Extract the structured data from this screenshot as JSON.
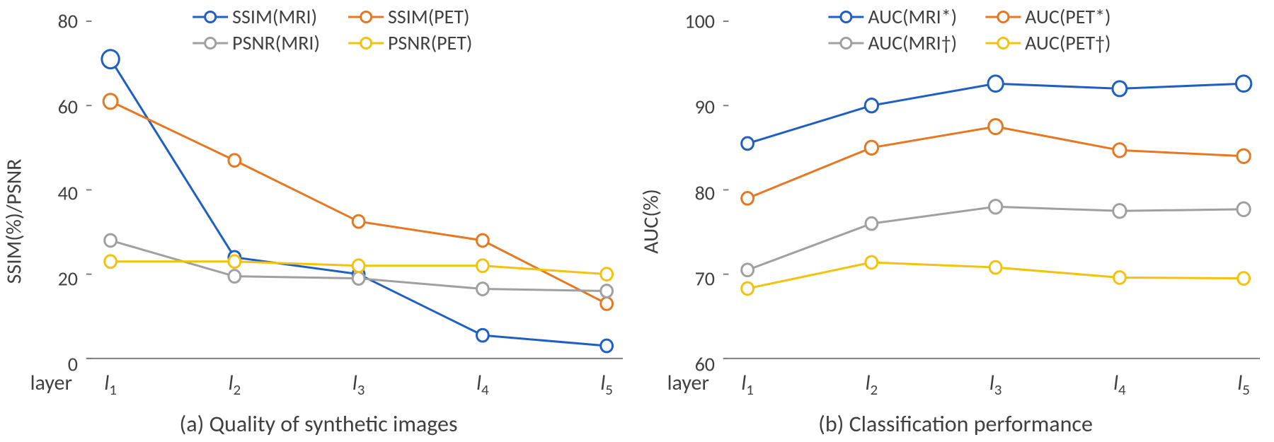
{
  "panels": [
    {
      "id": "a",
      "caption": "(a) Quality of synthetic images",
      "ylabel": "SSIM(%)/PSNR",
      "ylim": [
        0,
        80
      ],
      "ytick_step": 20,
      "x_prefix": "layer",
      "x_labels": [
        "l₁",
        "l₂",
        "l₃",
        "l₄",
        "l₅"
      ],
      "legend_cols": 2,
      "legend_fontsize": 28,
      "axis_fontsize": 30,
      "marker_fill": "#ffffff",
      "axis_color": "#808080",
      "background_color": "#ffffff",
      "series": [
        {
          "label": "SSIM(MRI)",
          "color": "#1f5fc4",
          "line_width": 3,
          "marker_r": [
            16,
            11,
            11,
            11,
            11
          ],
          "values": [
            71,
            24,
            20,
            5.5,
            3
          ]
        },
        {
          "label": "SSIM(PET)",
          "color": "#e87722",
          "line_width": 3,
          "marker_r": [
            13,
            11,
            11,
            11,
            11
          ],
          "values": [
            61,
            47,
            32.5,
            28,
            13
          ]
        },
        {
          "label": "PSNR(MRI)",
          "color": "#a0a0a0",
          "line_width": 3,
          "marker_r": [
            11,
            11,
            11,
            11,
            11
          ],
          "values": [
            28,
            19.5,
            19,
            16.5,
            16
          ]
        },
        {
          "label": "PSNR(PET)",
          "color": "#f4c20d",
          "line_width": 3,
          "marker_r": [
            11,
            11,
            11,
            11,
            11
          ],
          "values": [
            23,
            23,
            22,
            22,
            20
          ]
        }
      ]
    },
    {
      "id": "b",
      "caption": "(b) Classification performance",
      "ylabel": "AUC(%)",
      "ylim": [
        60,
        100
      ],
      "ytick_step": 10,
      "x_prefix": "layer",
      "x_labels": [
        "l₁",
        "l₂",
        "l₃",
        "l₄",
        "l₅"
      ],
      "legend_cols": 2,
      "legend_fontsize": 28,
      "axis_fontsize": 30,
      "marker_fill": "#ffffff",
      "axis_color": "#808080",
      "background_color": "#ffffff",
      "series": [
        {
          "label": "AUC(MRI*)",
          "color": "#1f5fc4",
          "line_width": 3,
          "marker_r": [
            11,
            12,
            14,
            13,
            14
          ],
          "values": [
            85.5,
            90,
            92.6,
            92,
            92.6
          ]
        },
        {
          "label": "AUC(PET*)",
          "color": "#e87722",
          "line_width": 3,
          "marker_r": [
            11,
            12,
            13,
            12,
            12
          ],
          "values": [
            79,
            85,
            87.5,
            84.7,
            84
          ]
        },
        {
          "label": "AUC(MRI†)",
          "color": "#a0a0a0",
          "line_width": 3,
          "marker_r": [
            11,
            11,
            12,
            12,
            12
          ],
          "values": [
            70.5,
            76,
            78,
            77.5,
            77.7
          ]
        },
        {
          "label": "AUC(PET†)",
          "color": "#f4c20d",
          "line_width": 3,
          "marker_r": [
            11,
            11,
            11,
            11,
            11
          ],
          "values": [
            68.3,
            71.4,
            70.8,
            69.6,
            69.5
          ]
        }
      ]
    }
  ]
}
